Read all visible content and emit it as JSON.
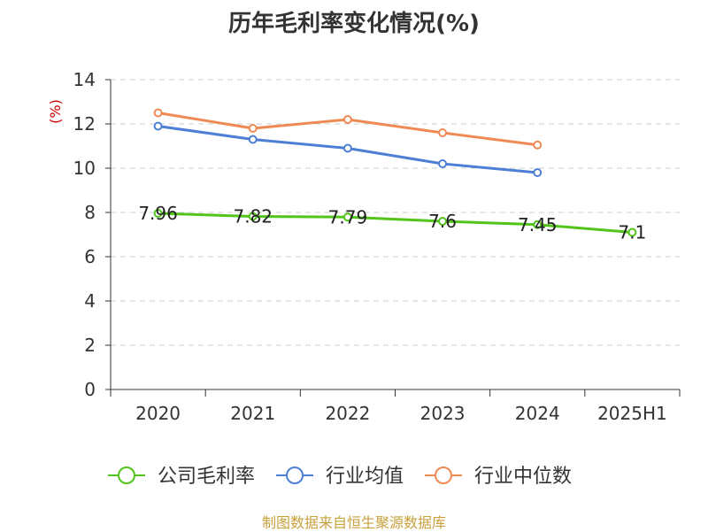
{
  "chart_data": {
    "type": "line",
    "title": "历年毛利率变化情况(%)",
    "ylabel": "(%)",
    "xlabel": "",
    "categories": [
      "2020",
      "2021",
      "2022",
      "2023",
      "2024",
      "2025H1"
    ],
    "ylim": [
      0,
      14
    ],
    "yticks": [
      0,
      2,
      4,
      6,
      8,
      10,
      12,
      14
    ],
    "grid": true,
    "legend_position": "bottom",
    "series": [
      {
        "name": "公司毛利率",
        "color": "#52c41a",
        "values": [
          7.96,
          7.82,
          7.79,
          7.6,
          7.45,
          7.1
        ],
        "labels": [
          "7.96",
          "7.82",
          "7.79",
          "7.6",
          "7.45",
          "7.1"
        ]
      },
      {
        "name": "行业均值",
        "color": "#4e7fd6",
        "values": [
          11.9,
          11.3,
          10.9,
          10.2,
          9.8,
          null
        ]
      },
      {
        "name": "行业中位数",
        "color": "#f08a55",
        "values": [
          12.5,
          11.8,
          12.2,
          11.6,
          11.05,
          null
        ]
      }
    ]
  },
  "footer": "制图数据来自恒生聚源数据库"
}
